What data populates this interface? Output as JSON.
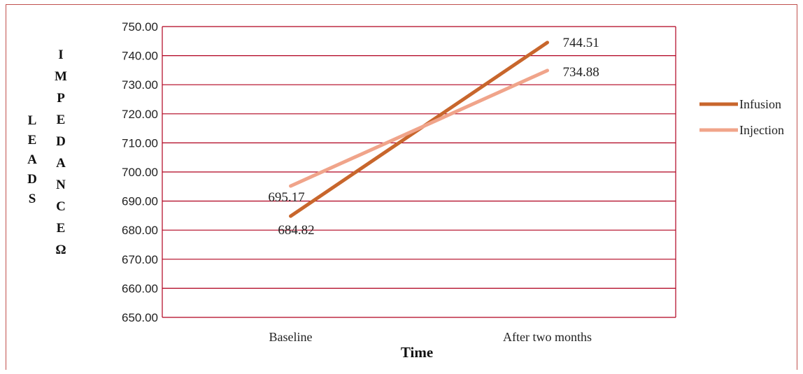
{
  "chart_data": {
    "type": "line",
    "categories": [
      "Baseline",
      "After two months"
    ],
    "series": [
      {
        "name": "Infusion",
        "values": [
          684.82,
          744.51
        ],
        "color": "#c8662c",
        "labels": [
          "684.82",
          "744.51"
        ]
      },
      {
        "name": "Injection",
        "values": [
          695.17,
          734.88
        ],
        "color": "#f0a48a",
        "labels": [
          "695.17",
          "734.88"
        ]
      }
    ],
    "xlabel": "Time",
    "ylabel_col1": [
      "L",
      "E",
      "A",
      "D",
      "S"
    ],
    "ylabel_col2": [
      "I",
      "M",
      "P",
      "E",
      "D",
      "A",
      "N",
      "C",
      "E",
      "Ω"
    ],
    "ylim": [
      650,
      750
    ],
    "yticks": [
      "650.00",
      "660.00",
      "670.00",
      "680.00",
      "690.00",
      "700.00",
      "710.00",
      "720.00",
      "730.00",
      "740.00",
      "750.00"
    ],
    "grid": true,
    "grid_color": "#b0001e",
    "legend_position": "right"
  }
}
